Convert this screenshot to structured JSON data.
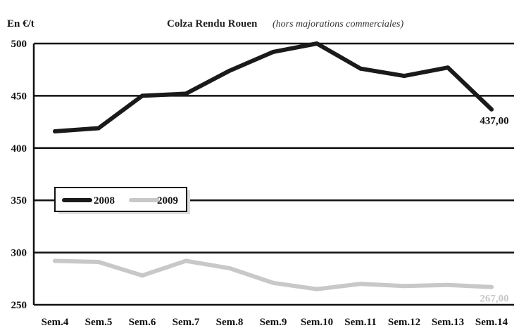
{
  "chart_data": {
    "type": "line",
    "title": "Colza Rendu Rouen",
    "subtitle": "(hors majorations commerciales)",
    "ylabel": "En €/t",
    "xlabel": "",
    "ylim": [
      250,
      500
    ],
    "yticks": [
      250,
      300,
      350,
      400,
      450,
      500
    ],
    "categories": [
      "Sem.4",
      "Sem.5",
      "Sem.6",
      "Sem.7",
      "Sem.8",
      "Sem.9",
      "Sem.10",
      "Sem.11",
      "Sem.12",
      "Sem.13",
      "Sem.14"
    ],
    "series": [
      {
        "name": "2008",
        "color": "#1a1a1a",
        "values": [
          416,
          419,
          450,
          452,
          474,
          492,
          500,
          476,
          469,
          477,
          437
        ],
        "end_label": "437,00"
      },
      {
        "name": "2009",
        "color": "#c8c8c8",
        "values": [
          292,
          291,
          278,
          292,
          285,
          271,
          265,
          270,
          268,
          269,
          267
        ],
        "end_label": "267,00"
      }
    ],
    "grid": "horizontal",
    "legend_position": "left"
  }
}
